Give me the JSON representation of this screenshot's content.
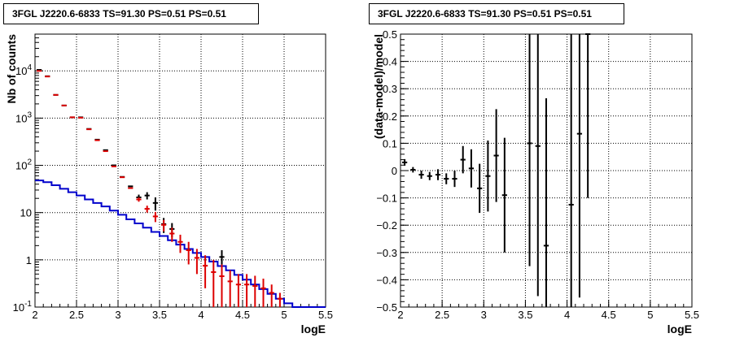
{
  "chart_data": [
    {
      "type": "histogram",
      "title": "3FGL J2220.6-6833 TS=91.30 PS=0.51 PS=0.51",
      "xlabel": "logE",
      "ylabel": "Nb of counts",
      "xlim": [
        2,
        5.5
      ],
      "ylim": [
        0.1,
        60000
      ],
      "yscale": "log",
      "grid": true,
      "x_ticks": [
        "2",
        "2.5",
        "3",
        "3.5",
        "4",
        "4.5",
        "5",
        "5.5"
      ],
      "y_ticks": [
        "10^-1",
        "1",
        "10",
        "10^2",
        "10^3",
        "10^4"
      ],
      "series": [
        {
          "color": "#0000cc",
          "style": "step",
          "x_edges": [
            2.0,
            2.1,
            2.2,
            2.3,
            2.4,
            2.5,
            2.6,
            2.7,
            2.8,
            2.9,
            3.0,
            3.1,
            3.2,
            3.3,
            3.4,
            3.5,
            3.6,
            3.7,
            3.8,
            3.9,
            4.0,
            4.1,
            4.2,
            4.3,
            4.4,
            4.5,
            4.6,
            4.7,
            4.8,
            4.9,
            5.0,
            5.1,
            5.2,
            5.3,
            5.4,
            5.5
          ],
          "values": [
            48,
            44,
            38,
            32,
            27,
            23,
            19,
            16,
            13.5,
            11,
            9,
            7.2,
            5.9,
            4.8,
            3.9,
            3.2,
            2.6,
            2.1,
            1.7,
            1.4,
            1.15,
            0.92,
            0.74,
            0.6,
            0.48,
            0.38,
            0.3,
            0.24,
            0.19,
            0.15,
            0.12,
            0.1,
            0.1,
            0.1,
            0.1
          ]
        },
        {
          "color": "#000000",
          "style": "errorbar",
          "x": [
            2.05,
            2.15,
            2.25,
            2.35,
            2.45,
            2.55,
            2.65,
            2.75,
            2.85,
            2.95,
            3.05,
            3.15,
            3.25,
            3.35,
            3.45,
            3.55,
            3.65,
            4.25
          ],
          "y": [
            10500,
            7700,
            3100,
            1850,
            1040,
            1040,
            590,
            350,
            210,
            100,
            57,
            36,
            21,
            23,
            16,
            5.7,
            4.5,
            1.15
          ],
          "err_low": [
            0,
            0,
            0,
            0,
            0,
            0,
            0,
            0,
            0,
            0,
            0,
            0,
            3,
            4,
            5,
            2,
            1.5,
            0.45
          ],
          "err_high": [
            0,
            0,
            0,
            0,
            0,
            0,
            0,
            0,
            0,
            0,
            0,
            0,
            3,
            4,
            5,
            2,
            1.5,
            0.45
          ]
        },
        {
          "color": "#dd0000",
          "style": "errorbar",
          "x": [
            2.05,
            2.15,
            2.25,
            2.35,
            2.45,
            2.55,
            2.65,
            2.75,
            2.85,
            2.95,
            3.05,
            3.15,
            3.25,
            3.35,
            3.45,
            3.55,
            3.65,
            3.75,
            3.85,
            3.95,
            4.05,
            4.15,
            4.25,
            4.35,
            4.45,
            4.55,
            4.65,
            4.75,
            4.85,
            4.95
          ],
          "y": [
            10000,
            7600,
            3100,
            1850,
            1040,
            1020,
            580,
            340,
            200,
            95,
            56,
            33,
            19,
            12,
            8.3,
            5.5,
            3.6,
            2.4,
            1.6,
            1.1,
            0.75,
            0.55,
            0.45,
            0.35,
            0.3,
            0.3,
            0.28,
            0.25,
            0.2,
            0.15
          ],
          "err_low": [
            0,
            0,
            0,
            0,
            0,
            0,
            0,
            0,
            0,
            0,
            0,
            0,
            2,
            2,
            2,
            1.5,
            1.2,
            1.0,
            0.8,
            0.6,
            0.5,
            0.45,
            0.35,
            0.25,
            0.2,
            0.2,
            0.18,
            0.15,
            0.1,
            0.05
          ],
          "err_high": [
            0,
            0,
            0,
            0,
            0,
            0,
            0,
            0,
            0,
            0,
            0,
            0,
            2,
            2,
            2,
            1.5,
            1.2,
            1.0,
            0.8,
            0.6,
            0.5,
            0.45,
            0.35,
            0.25,
            0.2,
            0.2,
            0.18,
            0.15,
            0.1,
            0.05
          ]
        }
      ]
    },
    {
      "type": "scatter",
      "title": "3FGL J2220.6-6833 TS=91.30 PS=0.51 PS=0.51",
      "xlabel": "logE",
      "ylabel": "(data-model)/model",
      "xlim": [
        2,
        5.5
      ],
      "ylim": [
        -0.5,
        0.5
      ],
      "grid": true,
      "x_ticks": [
        "2",
        "2.5",
        "3",
        "3.5",
        "4",
        "4.5",
        "5",
        "5.5"
      ],
      "y_ticks": [
        "-0.5",
        "-0.4",
        "-0.3",
        "-0.2",
        "-0.1",
        "0",
        "0.1",
        "0.2",
        "0.3",
        "0.4",
        "0.5"
      ],
      "series": [
        {
          "color": "#000000",
          "style": "errorbar",
          "x": [
            2.05,
            2.15,
            2.25,
            2.35,
            2.45,
            2.55,
            2.65,
            2.75,
            2.85,
            2.95,
            3.05,
            3.15,
            3.25,
            3.55,
            3.65,
            3.75,
            4.05,
            4.15,
            4.25
          ],
          "y": [
            0.03,
            0.003,
            -0.015,
            -0.02,
            -0.015,
            -0.03,
            -0.03,
            0.04,
            0.008,
            -0.065,
            -0.02,
            0.055,
            -0.09,
            0.1,
            0.09,
            -0.275,
            -0.125,
            0.135,
            0.5
          ],
          "err_low": [
            0.012,
            0.01,
            0.015,
            0.015,
            0.02,
            0.02,
            0.03,
            0.05,
            0.07,
            0.09,
            0.13,
            0.17,
            0.21,
            0.45,
            0.55,
            0.3,
            0.6,
            0.6,
            0.6
          ],
          "err_high": [
            0.012,
            0.01,
            0.015,
            0.015,
            0.02,
            0.02,
            0.03,
            0.05,
            0.07,
            0.09,
            0.13,
            0.17,
            0.21,
            0.45,
            0.55,
            0.54,
            0.65,
            0.4,
            0.1
          ]
        }
      ]
    }
  ]
}
